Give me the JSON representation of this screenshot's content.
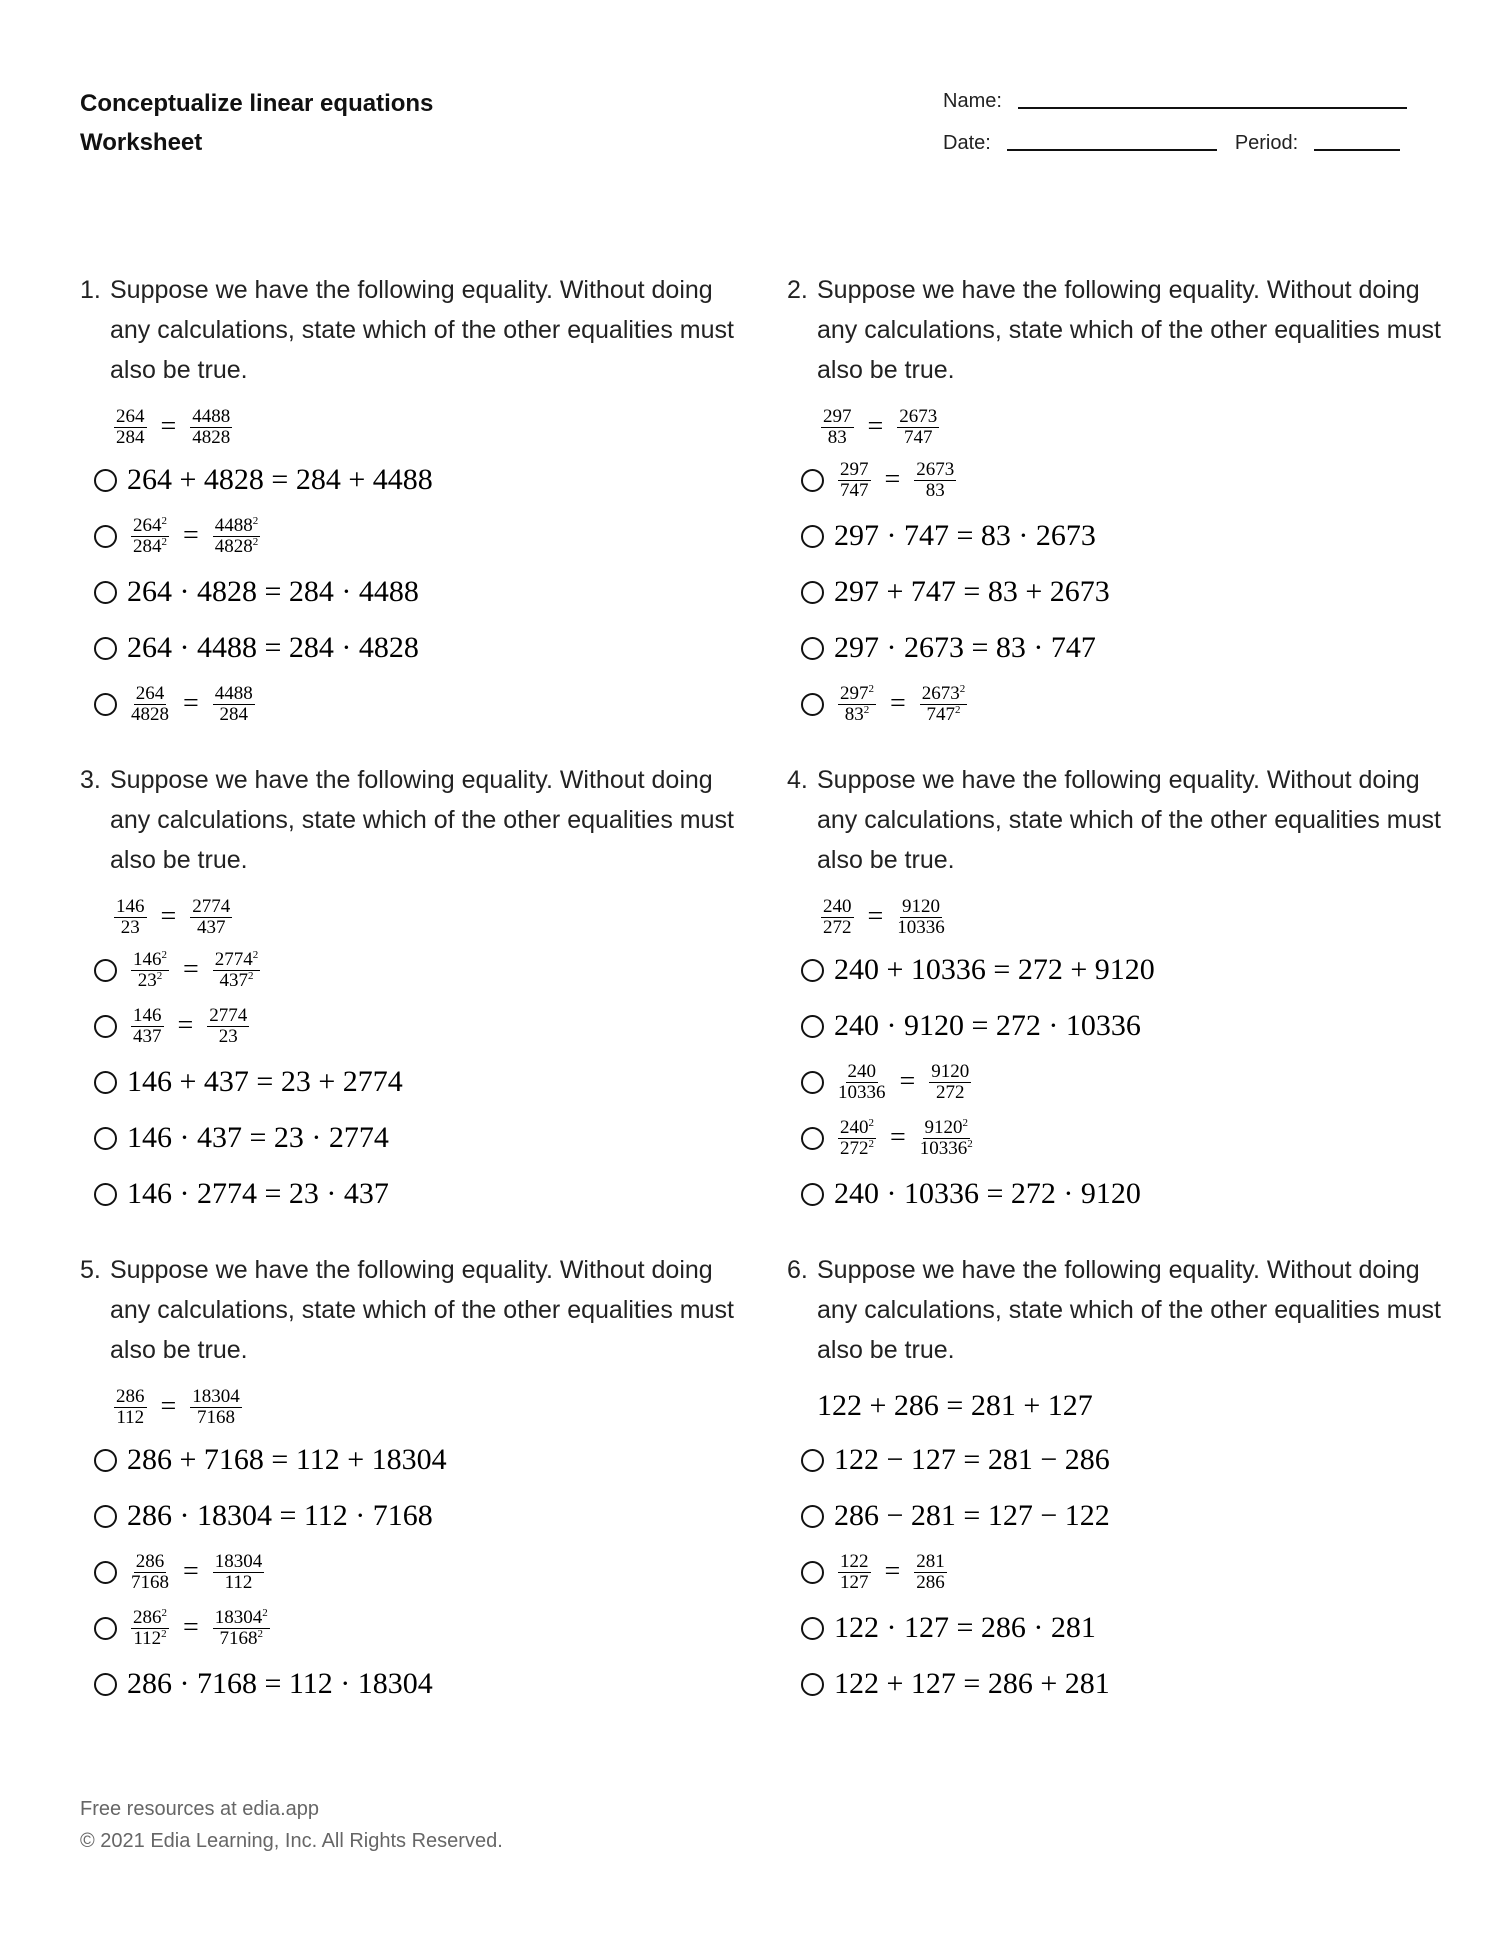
{
  "header": {
    "title_line1": "Conceptualize linear equations",
    "title_line2": "Worksheet",
    "name_label": "Name:",
    "date_label": "Date:",
    "period_label": "Period:"
  },
  "questions": [
    {
      "number": "1.",
      "prompt": "Suppose we have the following equality. Without doing any calculations, state which of the other equalities must also be true.",
      "given": {
        "type": "frac",
        "lhs": {
          "num": "264",
          "den": "284"
        },
        "rhs": {
          "num": "4488",
          "den": "4828"
        }
      },
      "options": [
        {
          "type": "text",
          "text": "264 + 4828 = 284 + 4488"
        },
        {
          "type": "frac",
          "lhs": {
            "num": "264",
            "den": "284"
          },
          "rhs": {
            "num": "4488",
            "den": "4828"
          },
          "exp": "2"
        },
        {
          "type": "text",
          "text": "264 · 4828 = 284 · 4488"
        },
        {
          "type": "text",
          "text": "264 · 4488 = 284 · 4828"
        },
        {
          "type": "frac",
          "lhs": {
            "num": "264",
            "den": "4828"
          },
          "rhs": {
            "num": "4488",
            "den": "284"
          }
        }
      ]
    },
    {
      "number": "2.",
      "prompt": "Suppose we have the following equality. Without doing any calculations, state which of the other equalities must also be true.",
      "given": {
        "type": "frac",
        "lhs": {
          "num": "297",
          "den": "83"
        },
        "rhs": {
          "num": "2673",
          "den": "747"
        }
      },
      "options": [
        {
          "type": "frac",
          "lhs": {
            "num": "297",
            "den": "747"
          },
          "rhs": {
            "num": "2673",
            "den": "83"
          }
        },
        {
          "type": "text",
          "text": "297 · 747 = 83 · 2673"
        },
        {
          "type": "text",
          "text": "297 + 747 = 83 + 2673"
        },
        {
          "type": "text",
          "text": "297 · 2673 = 83 · 747"
        },
        {
          "type": "frac",
          "lhs": {
            "num": "297",
            "den": "83"
          },
          "rhs": {
            "num": "2673",
            "den": "747"
          },
          "exp": "2"
        }
      ]
    },
    {
      "number": "3.",
      "prompt": "Suppose we have the following equality. Without doing any calculations, state which of the other equalities must also be true.",
      "given": {
        "type": "frac",
        "lhs": {
          "num": "146",
          "den": "23"
        },
        "rhs": {
          "num": "2774",
          "den": "437"
        }
      },
      "options": [
        {
          "type": "frac",
          "lhs": {
            "num": "146",
            "den": "23"
          },
          "rhs": {
            "num": "2774",
            "den": "437"
          },
          "exp": "2"
        },
        {
          "type": "frac",
          "lhs": {
            "num": "146",
            "den": "437"
          },
          "rhs": {
            "num": "2774",
            "den": "23"
          }
        },
        {
          "type": "text",
          "text": "146 + 437 = 23 + 2774"
        },
        {
          "type": "text",
          "text": "146 · 437 = 23 · 2774"
        },
        {
          "type": "text",
          "text": "146 · 2774 = 23 · 437"
        }
      ]
    },
    {
      "number": "4.",
      "prompt": "Suppose we have the following equality. Without doing any calculations, state which of the other equalities must also be true.",
      "given": {
        "type": "frac",
        "lhs": {
          "num": "240",
          "den": "272"
        },
        "rhs": {
          "num": "9120",
          "den": "10336"
        }
      },
      "options": [
        {
          "type": "text",
          "text": "240 + 10336 = 272 + 9120"
        },
        {
          "type": "text",
          "text": "240 · 9120 = 272 · 10336"
        },
        {
          "type": "frac",
          "lhs": {
            "num": "240",
            "den": "10336"
          },
          "rhs": {
            "num": "9120",
            "den": "272"
          }
        },
        {
          "type": "frac",
          "lhs": {
            "num": "240",
            "den": "272"
          },
          "rhs": {
            "num": "9120",
            "den": "10336"
          },
          "exp": "2"
        },
        {
          "type": "text",
          "text": "240 · 10336 = 272 · 9120"
        }
      ]
    },
    {
      "number": "5.",
      "prompt": "Suppose we have the following equality. Without doing any calculations, state which of the other equalities must also be true.",
      "given": {
        "type": "frac",
        "lhs": {
          "num": "286",
          "den": "112"
        },
        "rhs": {
          "num": "18304",
          "den": "7168"
        }
      },
      "options": [
        {
          "type": "text",
          "text": "286 + 7168 = 112 + 18304"
        },
        {
          "type": "text",
          "text": "286 · 18304 = 112 · 7168"
        },
        {
          "type": "frac",
          "lhs": {
            "num": "286",
            "den": "7168"
          },
          "rhs": {
            "num": "18304",
            "den": "112"
          }
        },
        {
          "type": "frac",
          "lhs": {
            "num": "286",
            "den": "112"
          },
          "rhs": {
            "num": "18304",
            "den": "7168"
          },
          "exp": "2"
        },
        {
          "type": "text",
          "text": "286 · 7168 = 112 · 18304"
        }
      ]
    },
    {
      "number": "6.",
      "prompt": "Suppose we have the following equality. Without doing any calculations, state which of the other equalities must also be true.",
      "given": {
        "type": "text",
        "text": "122 + 286 = 281 + 127"
      },
      "options": [
        {
          "type": "text",
          "text": "122 − 127 = 281 − 286"
        },
        {
          "type": "text",
          "text": "286 − 281 = 127 − 122"
        },
        {
          "type": "frac",
          "lhs": {
            "num": "122",
            "den": "127"
          },
          "rhs": {
            "num": "281",
            "den": "286"
          }
        },
        {
          "type": "text",
          "text": "122 · 127 = 286 · 281"
        },
        {
          "type": "text",
          "text": "122 + 127 = 286 + 281"
        }
      ]
    }
  ],
  "footer": {
    "line1": "Free resources at edia.app",
    "line2": "© 2021 Edia Learning, Inc. All Rights Reserved."
  }
}
